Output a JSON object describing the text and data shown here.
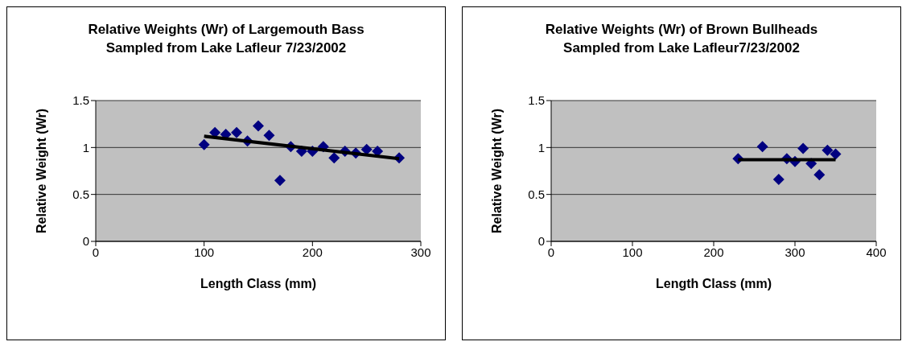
{
  "chart_data": [
    {
      "type": "scatter",
      "title": "Relative Weights (Wr) of Largemouth Bass Sampled from Lake Lafleur 7/23/2002",
      "xlabel": "Length Class (mm)",
      "ylabel": "Relative Weight (Wr)",
      "xlim": [
        0,
        300
      ],
      "xticks": [
        0,
        100,
        200,
        300
      ],
      "ylim": [
        0,
        1.5
      ],
      "yticks": [
        0,
        0.5,
        1,
        1.5
      ],
      "grid": "y",
      "series": [
        {
          "marker": "diamond",
          "color": "#000080",
          "x": [
            100,
            110,
            120,
            130,
            140,
            150,
            160,
            170,
            180,
            190,
            200,
            210,
            220,
            230,
            240,
            250,
            260,
            280
          ],
          "values": [
            1.03,
            1.16,
            1.14,
            1.16,
            1.07,
            1.23,
            1.13,
            0.65,
            1.01,
            0.96,
            0.96,
            1.01,
            0.89,
            0.96,
            0.94,
            0.98,
            0.96,
            0.89
          ]
        },
        {
          "type": "line",
          "marker": "none",
          "color": "#000000",
          "x": [
            100,
            280
          ],
          "values": [
            1.12,
            0.88
          ]
        }
      ]
    },
    {
      "type": "scatter",
      "title": "Relative Weights (Wr) of Brown Bullheads Sampled from Lake Lafleur7/23/2002",
      "xlabel": "Length Class (mm)",
      "ylabel": "Relative Weight (Wr)",
      "xlim": [
        0,
        400
      ],
      "xticks": [
        0,
        100,
        200,
        300,
        400
      ],
      "ylim": [
        0,
        1.5
      ],
      "yticks": [
        0,
        0.5,
        1,
        1.5
      ],
      "grid": "y",
      "series": [
        {
          "marker": "diamond",
          "color": "#000080",
          "x": [
            230,
            260,
            280,
            290,
            300,
            310,
            320,
            330,
            340,
            350
          ],
          "values": [
            0.88,
            1.01,
            0.66,
            0.88,
            0.85,
            0.99,
            0.83,
            0.71,
            0.97,
            0.93
          ]
        },
        {
          "type": "line",
          "marker": "none",
          "color": "#000000",
          "x": [
            230,
            350
          ],
          "values": [
            0.87,
            0.87
          ]
        }
      ]
    }
  ]
}
